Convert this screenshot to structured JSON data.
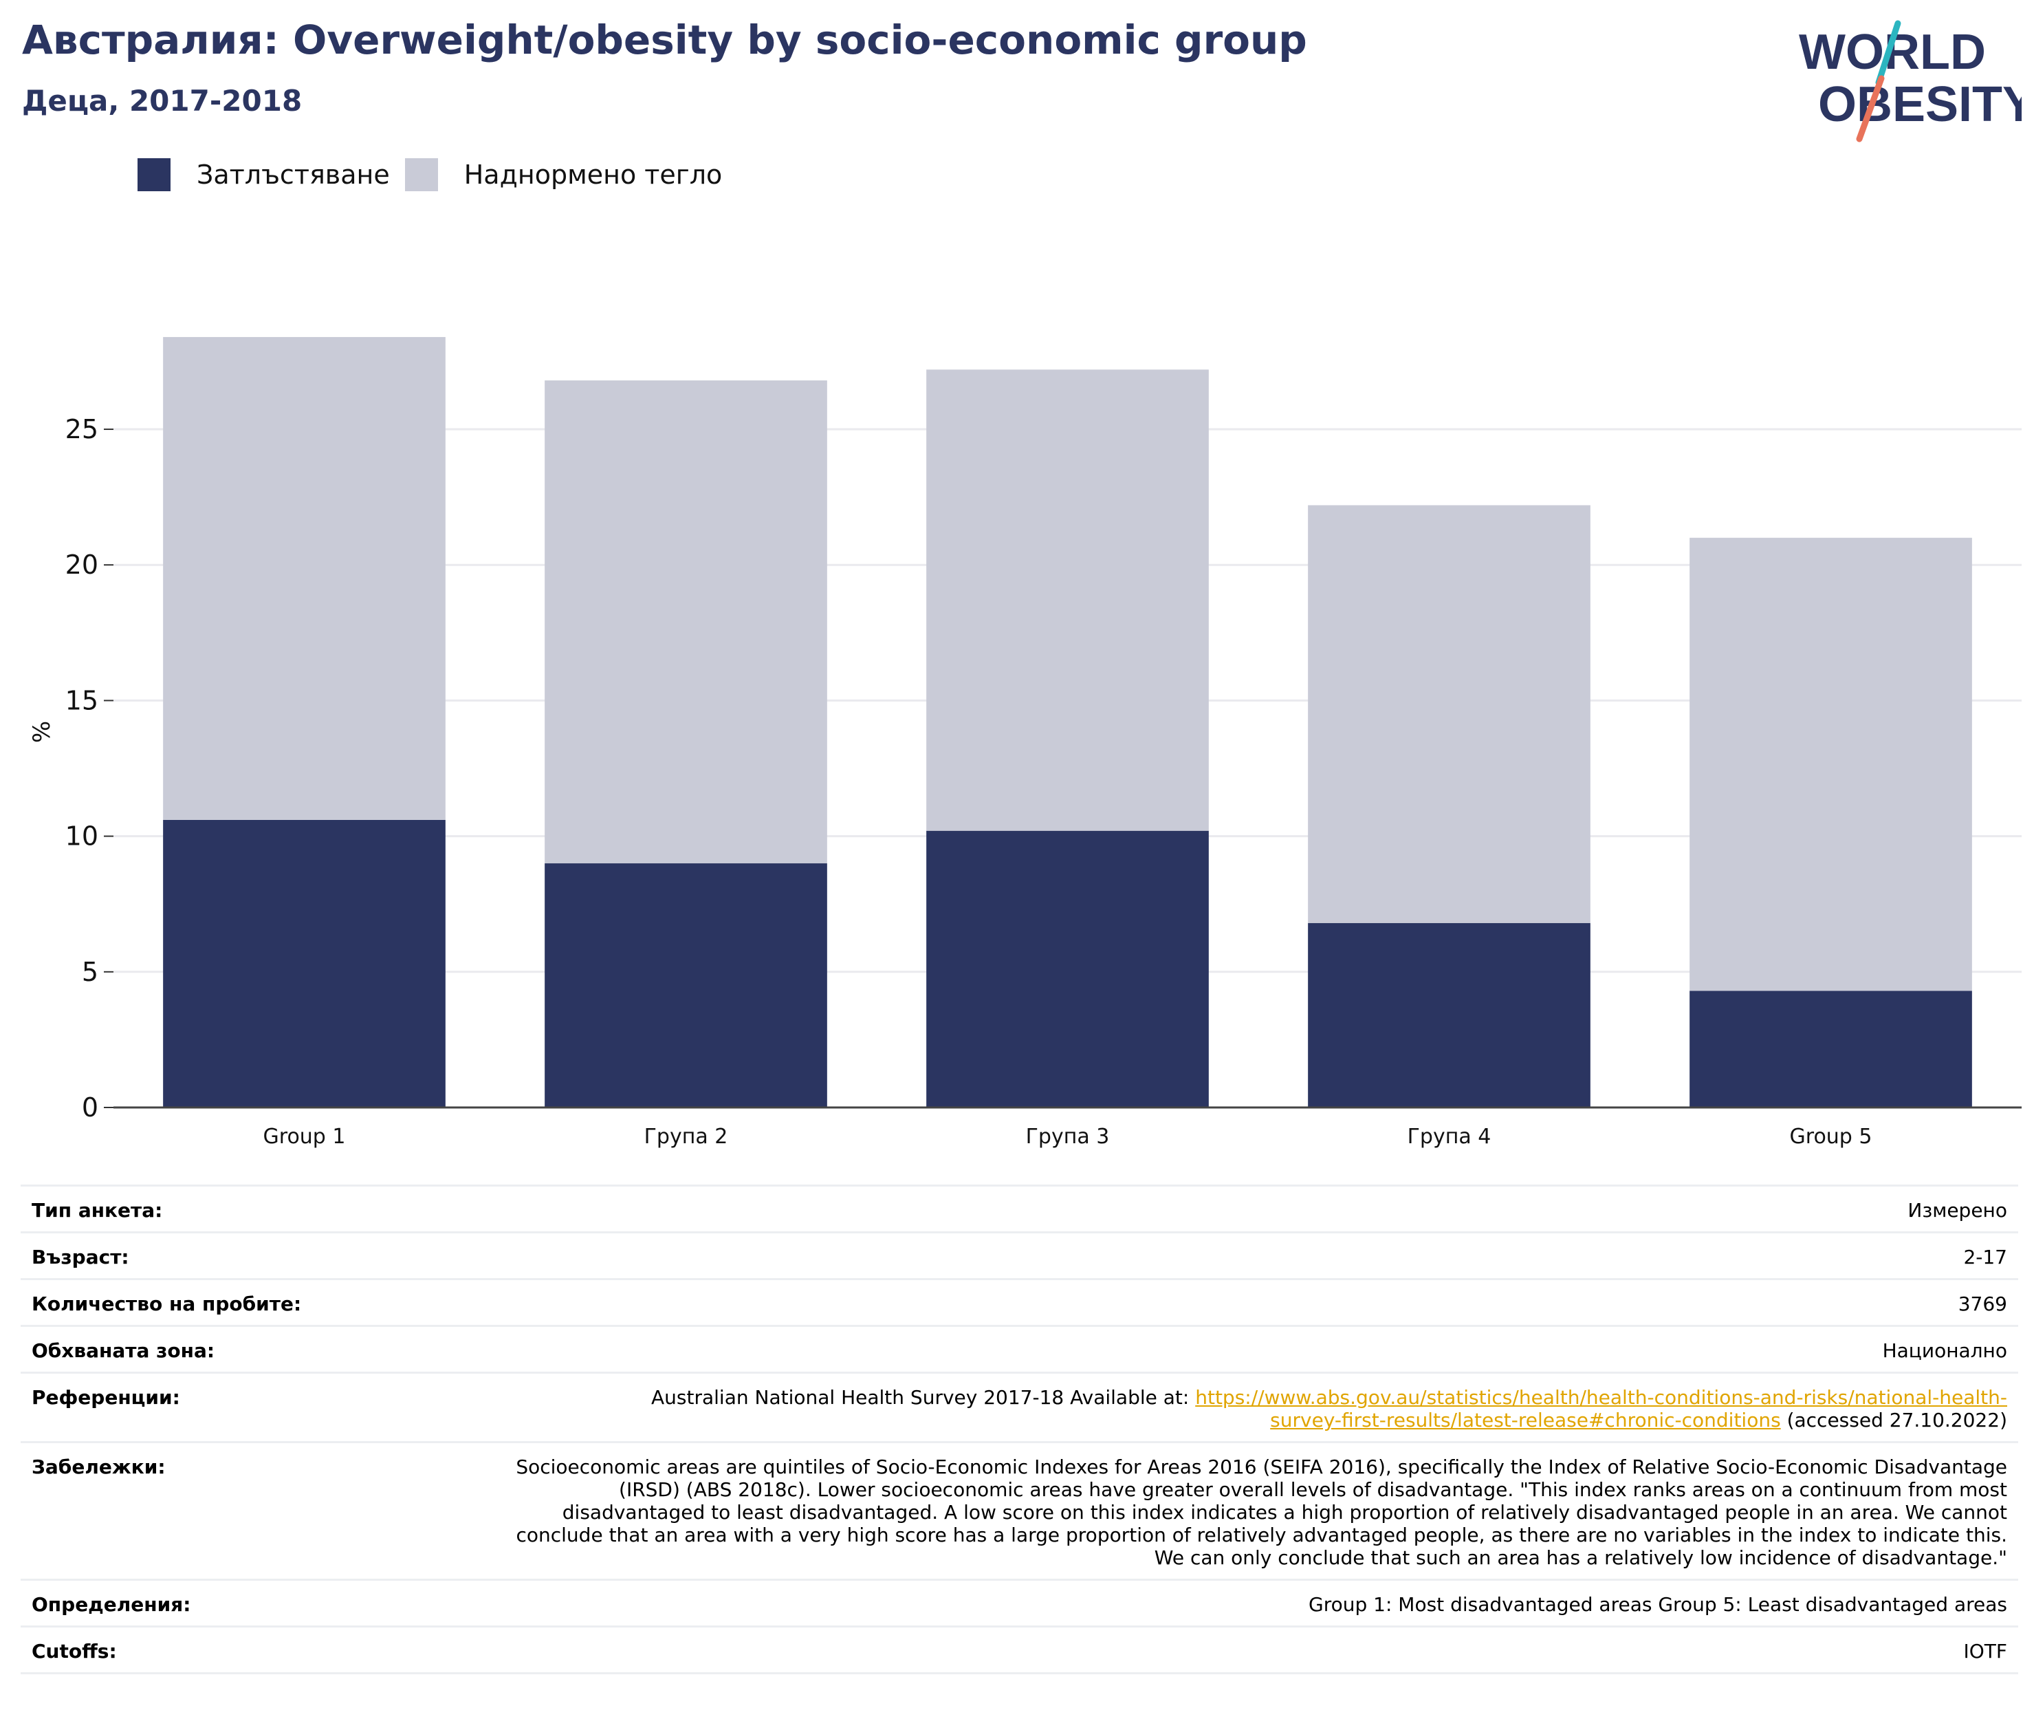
{
  "header": {
    "title": "Австралия: Overweight/obesity by socio-economic group",
    "subtitle": "Деца, 2017-2018"
  },
  "logo": {
    "line1": "WORLD",
    "line2": "OBESITY",
    "colors": {
      "text": "#2b3561",
      "slash_top": "#2bb5c0",
      "slash_bottom": "#e8735a"
    }
  },
  "legend": {
    "items": [
      {
        "label": "Затлъстяване",
        "color": "#2b3561"
      },
      {
        "label": "Наднормено тегло",
        "color": "#c9cbd7"
      }
    ]
  },
  "chart_data": {
    "type": "bar",
    "stacked": true,
    "categories": [
      "Group 1",
      "Група 2",
      "Група 3",
      "Група 4",
      "Group 5"
    ],
    "series": [
      {
        "name": "Затлъстяване",
        "color": "#2b3561",
        "values": [
          10.6,
          9.0,
          10.2,
          6.8,
          4.3
        ]
      },
      {
        "name": "Наднормено тегло",
        "color": "#c9cbd7",
        "values": [
          17.8,
          17.8,
          17.0,
          15.4,
          16.7
        ]
      }
    ],
    "ylabel": "%",
    "ylim": [
      0,
      28.5
    ],
    "yticks": [
      0,
      5,
      10,
      15,
      20,
      25
    ],
    "grid": true,
    "legend_position": "top-left"
  },
  "notes": {
    "survey_type": {
      "label": "Тип анкета:",
      "value": "Измерено"
    },
    "age": {
      "label": "Възраст:",
      "value": "2-17"
    },
    "sample_size": {
      "label": "Количество на пробите:",
      "value": "3769"
    },
    "area_covered": {
      "label": "Обхваната зона:",
      "value": "Национално"
    },
    "references": {
      "label": "Референции:",
      "text_before": "Australian National Health Survey 2017-18 Available at: ",
      "link_line1": "https://www.abs.gov.au/statistics/health/health-conditions-and-risks/national-health-",
      "link_line2": "survey-first-results/latest-release#chronic-conditions",
      "text_after": " (accessed 27.10.2022)"
    },
    "remarks": {
      "label": "Забележки:",
      "value": "Socioeconomic areas are quintiles of Socio-Economic Indexes for Areas 2016 (SEIFA 2016), specifically the Index of Relative Socio-Economic Disadvantage (IRSD) (ABS 2018c). Lower socioeconomic areas have greater overall levels of disadvantage. \"This index ranks areas on a continuum from most disadvantaged to least disadvantaged. A low score on this index indicates a high proportion of relatively disadvantaged people in an area. We cannot conclude that an area with a very high score has a large proportion of relatively advantaged people, as there are no variables in the index to indicate this. We can only conclude that such an area has a relatively low incidence of disadvantage.\""
    },
    "definitions": {
      "label": "Определения:",
      "value": "Group 1: Most disadvantaged areas Group 5: Least disadvantaged areas"
    },
    "cutoffs": {
      "label": "Cutoffs:",
      "value": "IOTF"
    }
  }
}
